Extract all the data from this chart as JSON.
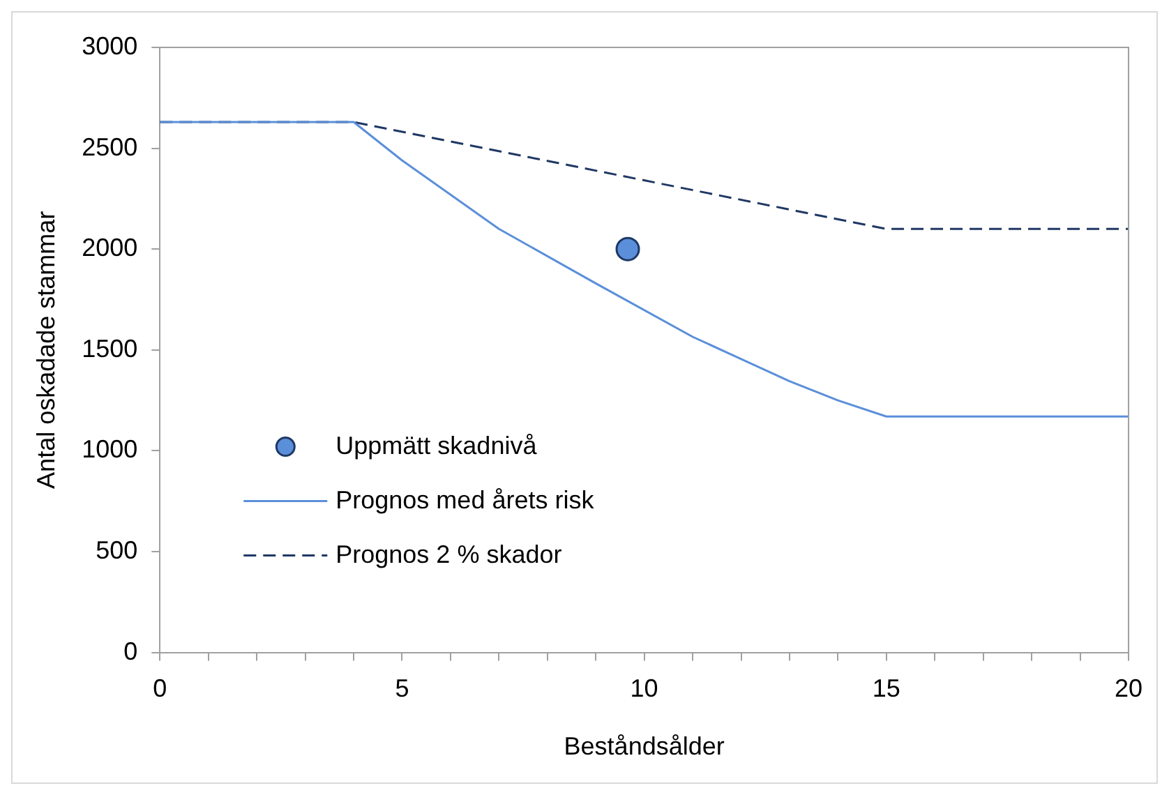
{
  "chart_data": {
    "type": "line",
    "xlabel": "Beståndsålder",
    "ylabel": "Antal oskadade stammar",
    "xlim": [
      0,
      20
    ],
    "xticks": [
      0,
      5,
      10,
      15,
      20
    ],
    "ylim": [
      0,
      3000
    ],
    "yticks": [
      0,
      500,
      1000,
      1500,
      2000,
      2500,
      3000
    ],
    "grid": false,
    "legend": "left",
    "series": [
      {
        "name": "Uppmätt skadnivå",
        "type": "scatter",
        "marker": "circle",
        "color": "#5b8fd9",
        "x": [
          9.66
        ],
        "values": [
          2000
        ]
      },
      {
        "name": "Prognos med årets risk",
        "line_style": "solid",
        "color": "#5b8fd9",
        "x": [
          0,
          4,
          5,
          7,
          9,
          11,
          13,
          14,
          15,
          20
        ],
        "values": [
          2630,
          2630,
          2440,
          2100,
          1830,
          1565,
          1345,
          1250,
          1170,
          1170
        ]
      },
      {
        "name": "Prognos 2 % skador",
        "line_style": "dashed",
        "color": "#1f3864",
        "x": [
          0,
          4,
          15,
          20
        ],
        "values": [
          2630,
          2630,
          2100,
          2100
        ]
      }
    ]
  }
}
